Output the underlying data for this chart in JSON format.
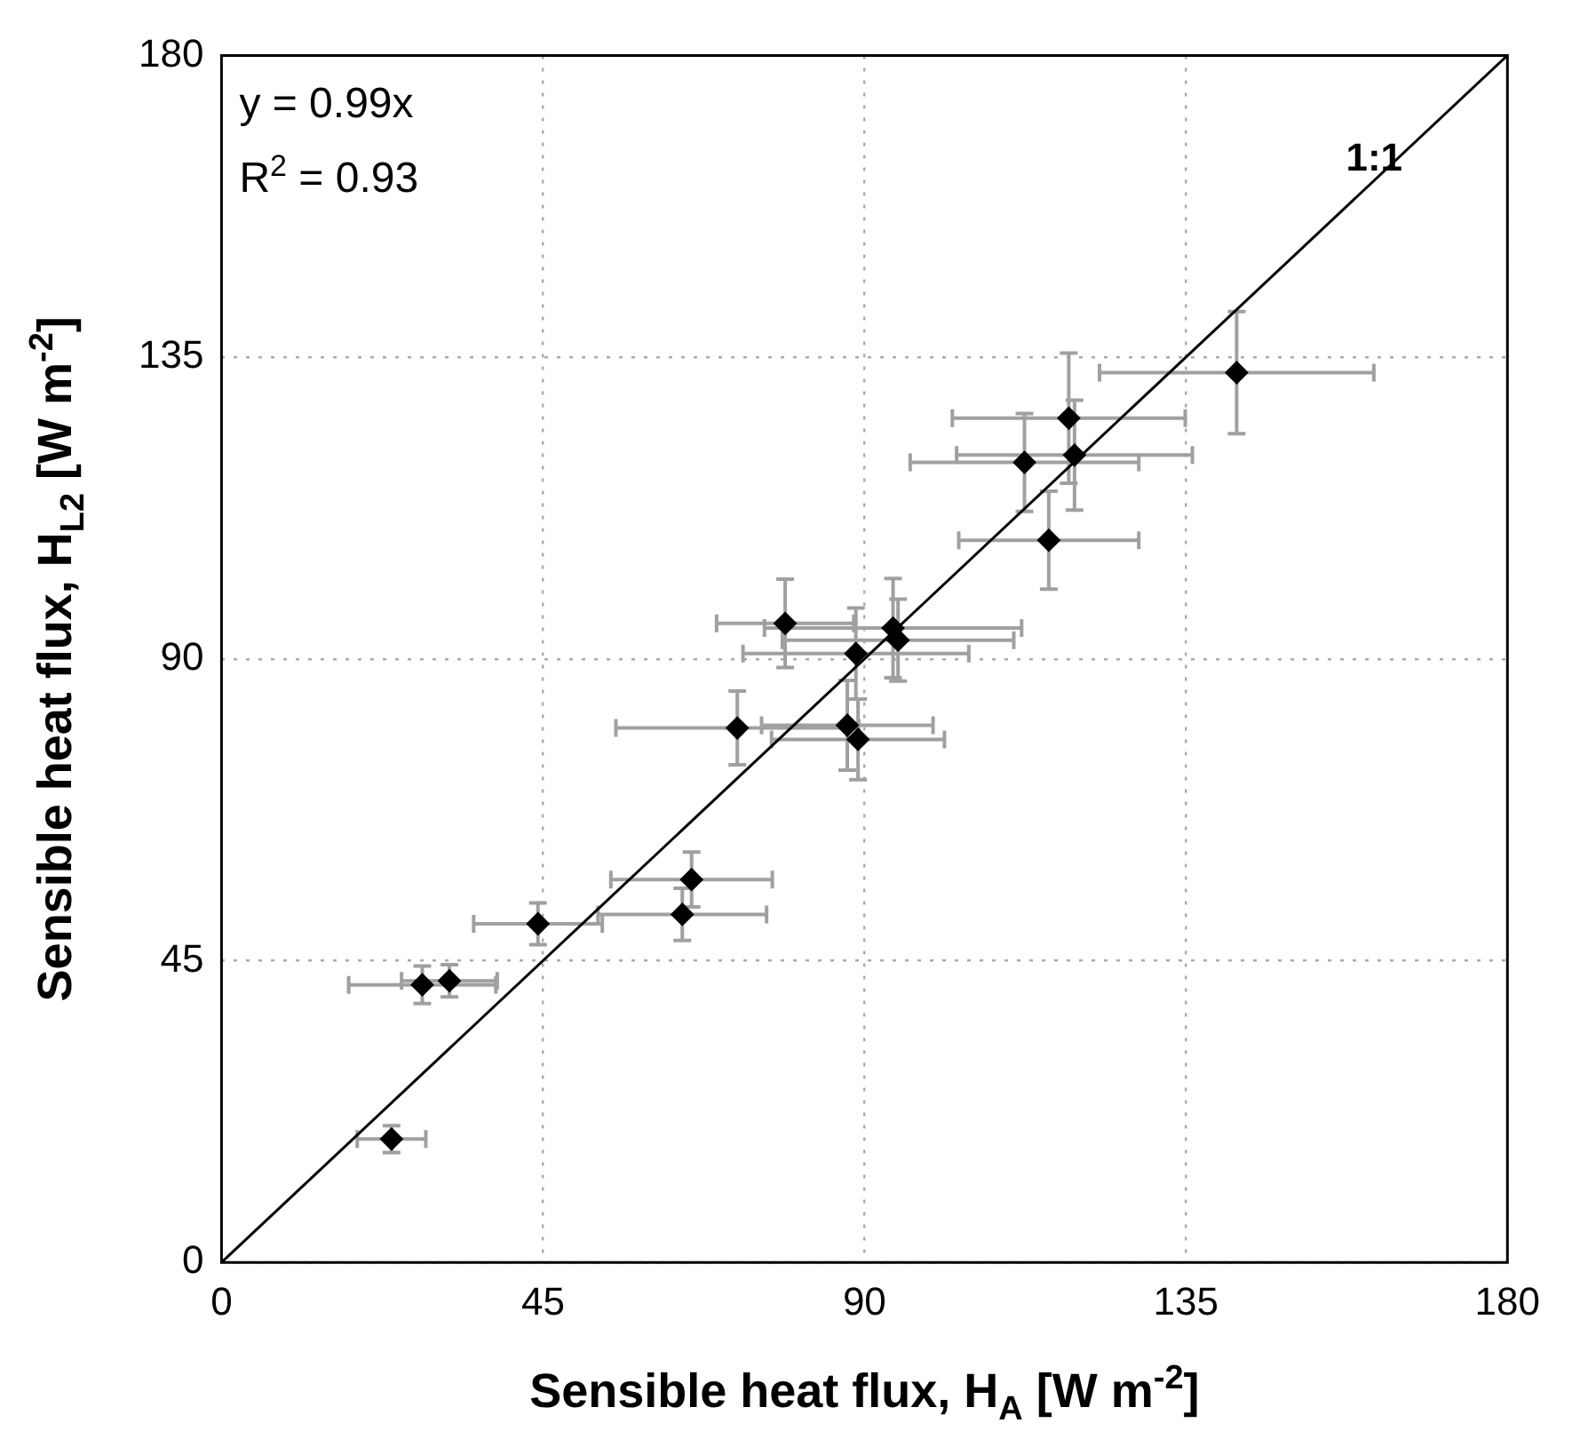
{
  "chart_data": {
    "type": "scatter",
    "xlabel": "Sensible heat flux, H$_{A}$ [W m$^{-2}$]",
    "ylabel": "Sensible heat flux, H$_{L2}$ [W m$^{-2}$]",
    "xlim": [
      0,
      180
    ],
    "ylim": [
      0,
      180
    ],
    "xticks": [
      0,
      45,
      90,
      135,
      180
    ],
    "yticks": [
      0,
      45,
      90,
      135,
      180
    ],
    "grid": true,
    "legend": false,
    "annotations": [
      "y = 0.99x",
      "R$^{2}$ = 0.93",
      "1:1"
    ],
    "series": [
      {
        "type": "scatter",
        "color": "#000000",
        "marker": "diamond",
        "x": [
          23.8,
          28.1,
          31.9,
          44.3,
          65.8,
          64.5,
          72.2,
          87.6,
          89.1,
          78.9,
          88.8,
          94.0,
          94.7,
          115.8,
          112.4,
          119.4,
          118.6,
          142.1
        ],
        "values": [
          18.4,
          41.4,
          42.0,
          50.5,
          57.1,
          51.9,
          79.7,
          80.1,
          78.0,
          95.3,
          90.8,
          94.6,
          92.8,
          107.7,
          119.3,
          120.4,
          125.9,
          132.7
        ],
        "xerrors": [
          4.8,
          10.3,
          6.7,
          9,
          11.3,
          11.8,
          17,
          12,
          12.1,
          9.6,
          15.8,
          18,
          16.2,
          12.6,
          16,
          16.5,
          16.3,
          19.2
        ],
        "errors": [
          2,
          2.8,
          2.4,
          3.1,
          4.1,
          3.9,
          5.5,
          6.7,
          6,
          6.6,
          6.8,
          7.4,
          6.1,
          7.3,
          7.3,
          8.2,
          9.7,
          9.1
        ]
      },
      {
        "type": "line",
        "color": "#000000",
        "marker": "none",
        "line_style": "solid",
        "x": [
          0,
          180
        ],
        "values": [
          0,
          180
        ]
      }
    ]
  }
}
